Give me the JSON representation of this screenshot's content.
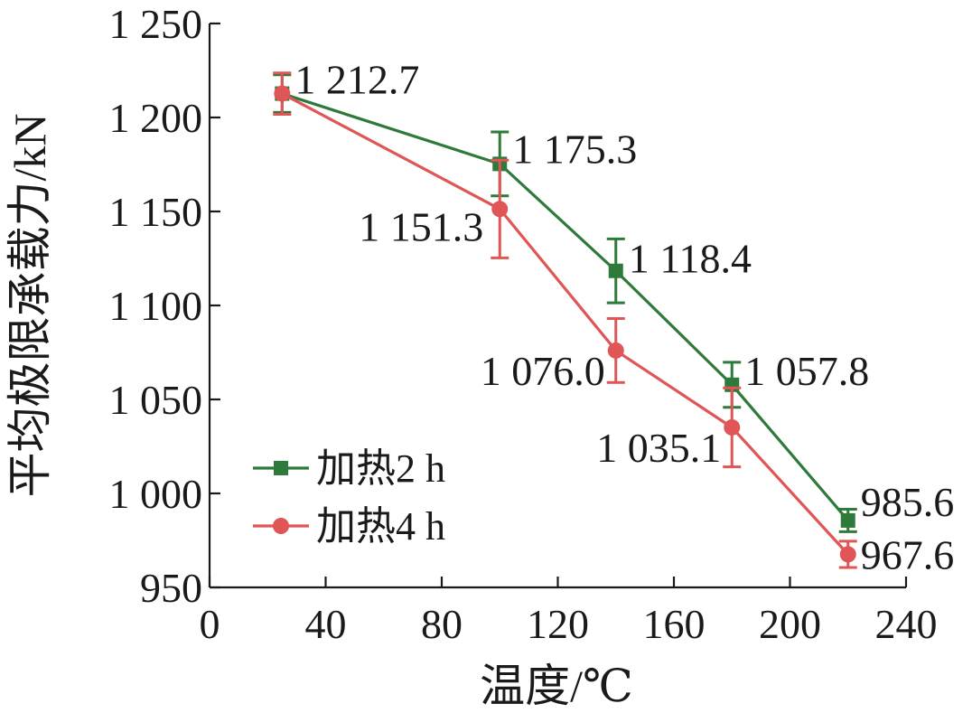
{
  "chart_data": {
    "type": "line",
    "xlabel": "温度/℃",
    "ylabel": "平均极限承载力/kN",
    "xlim": [
      0,
      240
    ],
    "ylim": [
      950,
      1250
    ],
    "xticks": [
      0,
      40,
      80,
      120,
      160,
      200,
      240
    ],
    "xtick_labels": [
      "0",
      "40",
      "80",
      "120",
      "160",
      "200",
      "240"
    ],
    "yticks": [
      950,
      1000,
      1050,
      1100,
      1150,
      1200,
      1250
    ],
    "ytick_labels": [
      "950",
      "1 000",
      "1 050",
      "1 100",
      "1 150",
      "1 200",
      "1 250"
    ],
    "grid": false,
    "legend_position": "bottom-left",
    "series": [
      {
        "name": "加热2 h",
        "color": "#2e7a3a",
        "marker": "square",
        "x": [
          25,
          100,
          140,
          180,
          220
        ],
        "y": [
          1212.7,
          1175.3,
          1118.4,
          1057.8,
          985.6
        ],
        "error": [
          10,
          17,
          17,
          12,
          6
        ],
        "labels": [
          "1 212.7",
          "1 175.3",
          "1 118.4",
          "1 057.8",
          "985.6"
        ]
      },
      {
        "name": "加热4 h",
        "color": "#e05555",
        "marker": "circle",
        "x": [
          25,
          100,
          140,
          180,
          220
        ],
        "y": [
          1212.7,
          1151.3,
          1076.0,
          1035.1,
          967.6
        ],
        "error": [
          11,
          26,
          17,
          21,
          7
        ],
        "labels": [
          "",
          "1 151.3",
          "1 076.0",
          "1 035.1",
          "967.6"
        ]
      }
    ]
  }
}
